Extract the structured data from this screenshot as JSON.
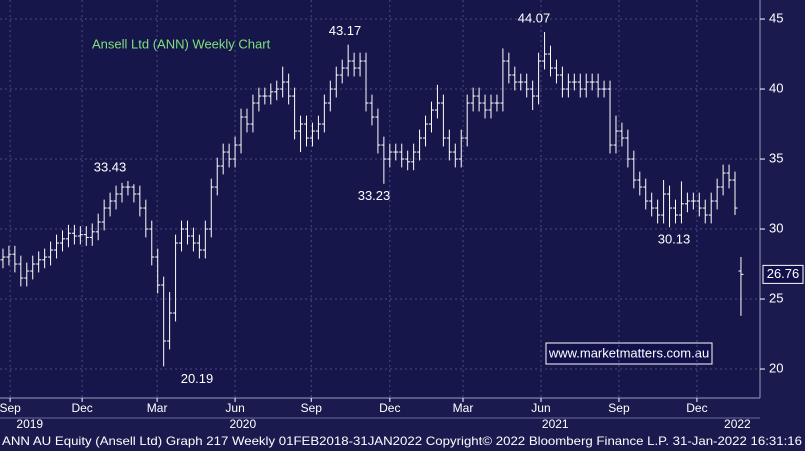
{
  "chart_data": {
    "type": "ohlc",
    "title": "Ansell Ltd (ANN) Weekly Chart",
    "watermark": "www.marketmatters.com.au",
    "footer": "ANN AU Equity (Ansell Ltd) Graph 217  Weekly 01FEB2018-31JAN2022  Copyright© 2022 Bloomberg Finance L.P.  31-Jan-2022 16:31:16",
    "color": "#ffffff",
    "grid": true,
    "ylim": [
      17.93,
      46.36
    ],
    "yticks": [
      20,
      25,
      30,
      35,
      40,
      45
    ],
    "xlim": [
      -0.5,
      127.2
    ],
    "xticks": [
      {
        "value": 1.2,
        "label": "Sep"
      },
      {
        "value": 13.3,
        "label": "Dec"
      },
      {
        "value": 25.9,
        "label": "Mar"
      },
      {
        "value": 39,
        "label": "Jun"
      },
      {
        "value": 51.8,
        "label": "Sep"
      },
      {
        "value": 65,
        "label": "Dec"
      },
      {
        "value": 77.3,
        "label": "Mar"
      },
      {
        "value": 90.4,
        "label": "Jun"
      },
      {
        "value": 103.5,
        "label": "Sep"
      },
      {
        "value": 116.6,
        "label": "Dec"
      }
    ],
    "year_ticks": [
      {
        "value": 4.5,
        "label": "2019"
      },
      {
        "value": 40.3,
        "label": "2020"
      },
      {
        "value": 92.8,
        "label": "2021"
      },
      {
        "value": 123.4,
        "label": "2022"
      }
    ],
    "annotations": [
      33.43,
      20.19,
      43.17,
      33.23,
      44.07,
      30.13
    ],
    "open": [
      27.8,
      28,
      28.2,
      27.5,
      26.5,
      27,
      27.5,
      27.8,
      28,
      28.5,
      29,
      29.3,
      29.7,
      29.5,
      29.6,
      29.4,
      29.8,
      30.5,
      31.5,
      32,
      32.5,
      33,
      33,
      32.5,
      31.5,
      30,
      28,
      26,
      22,
      24,
      29,
      30,
      29.5,
      29,
      28.5,
      30,
      33,
      34.5,
      35.5,
      35,
      36,
      38,
      37.5,
      39,
      39.5,
      39.5,
      39.8,
      40,
      40.5,
      39.5,
      37,
      37.5,
      36.5,
      37,
      37.5,
      39,
      40,
      41,
      41.5,
      42,
      41.5,
      42,
      39,
      38,
      36,
      35,
      35.5,
      35.5,
      35,
      34.8,
      35.5,
      36.5,
      37.5,
      38.5,
      39,
      36.5,
      35.5,
      35,
      36.5,
      39,
      39.5,
      39,
      38.5,
      39,
      39,
      42,
      41,
      40.5,
      40.5,
      40,
      39.5,
      42,
      42.5,
      41.5,
      41,
      40,
      40.5,
      40.5,
      40,
      40.5,
      40.5,
      40,
      40,
      36,
      37,
      36.5,
      35,
      33.5,
      33,
      32,
      31.5,
      31,
      32.5,
      31.5,
      31,
      31.8,
      32,
      32,
      31.5,
      31,
      32,
      33,
      34,
      33.5,
      27
    ],
    "high": [
      28.6,
      28.8,
      28.8,
      28.1,
      27.6,
      28.1,
      28.4,
      28.6,
      29.1,
      29.6,
      29.9,
      30.3,
      30.3,
      30.2,
      30.2,
      30.4,
      31.1,
      32.1,
      32.6,
      33.1,
      33.3,
      33.43,
      33.2,
      33.1,
      32.1,
      30.6,
      28.6,
      26.6,
      25.5,
      29.6,
      30.6,
      30.6,
      30.1,
      29.6,
      30.6,
      33.6,
      35.1,
      36.1,
      36.1,
      36.6,
      38.6,
      38.6,
      39.6,
      40.1,
      40.1,
      40.4,
      40.6,
      41.6,
      41.1,
      40.1,
      38.1,
      38.1,
      37.6,
      38.1,
      39.6,
      40.6,
      41.6,
      42.1,
      43.17,
      42.6,
      42.6,
      42.6,
      39.6,
      38.6,
      36.6,
      36.1,
      36.1,
      36.1,
      35.6,
      36.1,
      37.1,
      38.1,
      39.1,
      40.3,
      39.6,
      37.1,
      36.1,
      37.1,
      39.6,
      40.1,
      40.1,
      39.6,
      39.6,
      39.6,
      42.9,
      42.6,
      41.6,
      41.1,
      41.1,
      40.6,
      42.6,
      44.07,
      43.1,
      42.1,
      41.6,
      41.1,
      41.1,
      41.1,
      41.1,
      41.1,
      41.1,
      40.6,
      40.6,
      38.1,
      37.6,
      37.1,
      35.6,
      34.1,
      33.6,
      32.6,
      32.1,
      33.5,
      33.1,
      32.1,
      33.4,
      32.6,
      32.6,
      32.6,
      32.1,
      32.6,
      33.6,
      34.6,
      34.6,
      34.1,
      28
    ],
    "low": [
      27.2,
      27.4,
      26.9,
      25.9,
      25.9,
      26.4,
      26.9,
      27.2,
      27.4,
      27.9,
      28.4,
      28.7,
      28.9,
      28.9,
      28.8,
      28.8,
      29.2,
      29.9,
      30.9,
      31.4,
      31.9,
      32.4,
      31.9,
      30.9,
      29.4,
      27.4,
      25.4,
      20.19,
      21.4,
      23.4,
      28.4,
      28.9,
      28.4,
      27.9,
      27.9,
      29.4,
      32.4,
      33.9,
      34.4,
      34.4,
      35.4,
      36.9,
      36.9,
      38.4,
      38.9,
      38.9,
      39.2,
      39.4,
      38.9,
      36.4,
      35.5,
      35.9,
      35.9,
      36.4,
      36.9,
      38.4,
      39.4,
      40.4,
      40.9,
      40.9,
      40.9,
      38.4,
      37.4,
      35.4,
      33.23,
      34.4,
      34.9,
      34.4,
      34.2,
      34.2,
      34.9,
      35.9,
      36.9,
      37.9,
      35.9,
      34.9,
      34.4,
      34.4,
      35.9,
      38.4,
      38.4,
      37.9,
      37.9,
      38.4,
      38.4,
      40.4,
      39.9,
      39.9,
      39.4,
      38.5,
      38.9,
      41.4,
      40.9,
      40.4,
      39.4,
      39.4,
      39.9,
      39.4,
      39.4,
      39.9,
      39.4,
      39.4,
      35.4,
      35.4,
      35.9,
      34.4,
      32.9,
      32.4,
      31.4,
      30.9,
      30.4,
      30.4,
      30.13,
      30.4,
      30.4,
      31.2,
      31.4,
      30.9,
      30.4,
      30.4,
      31.4,
      32.4,
      32.9,
      31,
      23.8
    ],
    "close": [
      28,
      28.2,
      27.5,
      26.5,
      27,
      27.5,
      27.8,
      28,
      28.5,
      29,
      29.3,
      29.7,
      29.5,
      29.6,
      29.4,
      29.8,
      30.5,
      31.5,
      32,
      32.5,
      33,
      33,
      32.5,
      31.5,
      30,
      28,
      26,
      22,
      24,
      29,
      30,
      29.5,
      29,
      28.5,
      30,
      33,
      34.5,
      35.5,
      35,
      36,
      38,
      37.5,
      39,
      39.5,
      39.5,
      39.8,
      40,
      40.5,
      39.5,
      37,
      37.5,
      36.5,
      37,
      37.5,
      39,
      40,
      41,
      41.5,
      42,
      41.5,
      42,
      39,
      38,
      36,
      35,
      35.5,
      35.5,
      35,
      34.8,
      35.5,
      36.5,
      37.5,
      38.5,
      39,
      36.5,
      35.5,
      35,
      36.5,
      39,
      39.5,
      39,
      38.5,
      39,
      39,
      42,
      41,
      40.5,
      40.5,
      40,
      39.5,
      42,
      42.5,
      41.5,
      41,
      40,
      40.5,
      40.5,
      40,
      40.5,
      40.5,
      40,
      40,
      36,
      37,
      36.5,
      35,
      33.5,
      33,
      32,
      31.5,
      31,
      32.5,
      31.5,
      31,
      31.8,
      32,
      32,
      31.5,
      31,
      32,
      33,
      34,
      33.5,
      31.5,
      26.76
    ]
  }
}
